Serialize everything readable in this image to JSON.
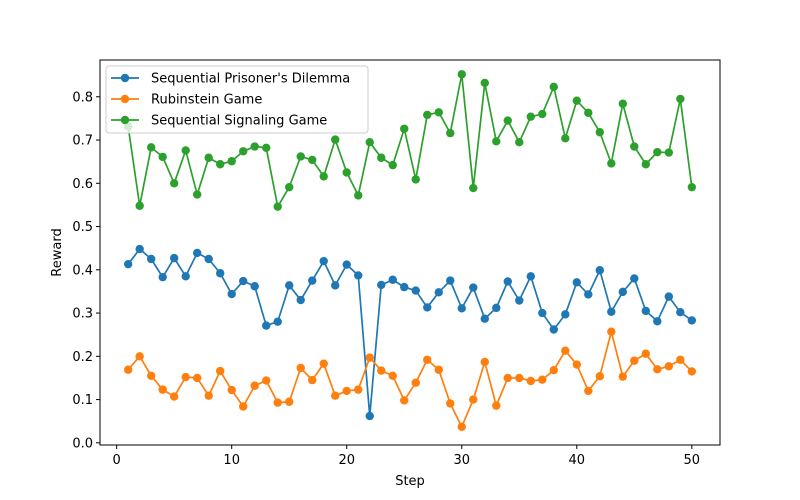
{
  "chart_data": {
    "type": "line",
    "title": "",
    "xlabel": "Step",
    "ylabel": "Reward",
    "xlim": [
      -1.45,
      52.45
    ],
    "ylim": [
      -0.005,
      0.885
    ],
    "xticks": [
      "0",
      "10",
      "20",
      "30",
      "40",
      "50"
    ],
    "yticks": [
      "0.0",
      "0.1",
      "0.2",
      "0.3",
      "0.4",
      "0.5",
      "0.6",
      "0.7",
      "0.8"
    ],
    "grid": false,
    "legend_position": "upper-left",
    "x": [
      1,
      2,
      3,
      4,
      5,
      6,
      7,
      8,
      9,
      10,
      11,
      12,
      13,
      14,
      15,
      16,
      17,
      18,
      19,
      20,
      21,
      22,
      23,
      24,
      25,
      26,
      27,
      28,
      29,
      30,
      31,
      32,
      33,
      34,
      35,
      36,
      37,
      38,
      39,
      40,
      41,
      42,
      43,
      44,
      45,
      46,
      47,
      48,
      49,
      50
    ],
    "series": [
      {
        "name": "Sequential Prisoner's Dilemma",
        "color": "#1f77b4",
        "values": [
          0.413,
          0.448,
          0.425,
          0.383,
          0.427,
          0.385,
          0.439,
          0.425,
          0.392,
          0.344,
          0.374,
          0.362,
          0.271,
          0.28,
          0.364,
          0.33,
          0.375,
          0.42,
          0.364,
          0.412,
          0.387,
          0.062,
          0.365,
          0.377,
          0.36,
          0.352,
          0.313,
          0.348,
          0.375,
          0.311,
          0.359,
          0.287,
          0.312,
          0.373,
          0.329,
          0.385,
          0.3,
          0.262,
          0.297,
          0.371,
          0.343,
          0.399,
          0.303,
          0.349,
          0.38,
          0.305,
          0.281,
          0.338,
          0.302,
          0.283
        ]
      },
      {
        "name": "Rubinstein Game",
        "color": "#ff7f0e",
        "values": [
          0.169,
          0.2,
          0.155,
          0.123,
          0.107,
          0.152,
          0.15,
          0.109,
          0.166,
          0.122,
          0.084,
          0.132,
          0.144,
          0.093,
          0.095,
          0.173,
          0.145,
          0.183,
          0.109,
          0.12,
          0.123,
          0.197,
          0.167,
          0.155,
          0.098,
          0.139,
          0.192,
          0.169,
          0.091,
          0.037,
          0.1,
          0.187,
          0.086,
          0.15,
          0.15,
          0.143,
          0.146,
          0.168,
          0.213,
          0.181,
          0.12,
          0.154,
          0.257,
          0.153,
          0.19,
          0.206,
          0.17,
          0.177,
          0.192,
          0.165
        ]
      },
      {
        "name": "Sequential Signaling Game",
        "color": "#2ca02c",
        "values": [
          0.731,
          0.548,
          0.683,
          0.661,
          0.6,
          0.676,
          0.574,
          0.659,
          0.644,
          0.651,
          0.674,
          0.685,
          0.682,
          0.546,
          0.591,
          0.662,
          0.654,
          0.616,
          0.701,
          0.625,
          0.572,
          0.695,
          0.659,
          0.642,
          0.726,
          0.609,
          0.758,
          0.764,
          0.716,
          0.852,
          0.589,
          0.832,
          0.697,
          0.745,
          0.695,
          0.754,
          0.76,
          0.823,
          0.704,
          0.791,
          0.763,
          0.718,
          0.646,
          0.784,
          0.685,
          0.644,
          0.672,
          0.671,
          0.795,
          0.591
        ]
      }
    ]
  }
}
